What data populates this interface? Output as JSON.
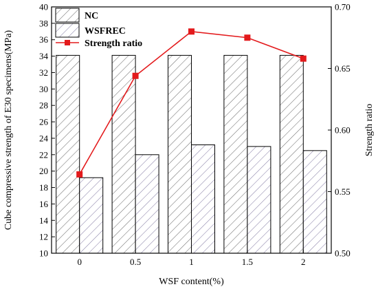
{
  "chart_data": {
    "type": "bar",
    "categories": [
      "0",
      "0.5",
      "1",
      "1.5",
      "2"
    ],
    "series": [
      {
        "name": "NC",
        "type": "bar",
        "axis": "left",
        "values": [
          34.1,
          34.1,
          34.1,
          34.1,
          34.1
        ],
        "color": "#ffffff",
        "pattern": "diagonal-hatch"
      },
      {
        "name": "WSFREC",
        "type": "bar",
        "axis": "left",
        "values": [
          19.2,
          22.0,
          23.2,
          23.0,
          22.5
        ],
        "color": "#ffffff",
        "pattern": "diagonal-hatch"
      },
      {
        "name": "Strength ratio",
        "type": "line",
        "axis": "right",
        "marker": "square",
        "values": [
          0.564,
          0.644,
          0.68,
          0.675,
          0.658
        ],
        "color": "#e31a1c"
      }
    ],
    "xlabel": "WSF content(%)",
    "ylabel": "Cube compressive strength of E30 specimens(MPa)",
    "y2label": "Strength ratio",
    "ylim": [
      10,
      40
    ],
    "yticks": [
      "10",
      "12",
      "14",
      "16",
      "18",
      "20",
      "22",
      "24",
      "26",
      "28",
      "30",
      "32",
      "34",
      "36",
      "38",
      "40"
    ],
    "y2lim": [
      0.5,
      0.7
    ],
    "y2ticks": [
      "0.50",
      "0.55",
      "0.60",
      "0.65",
      "0.70"
    ],
    "grid": false,
    "legend_position": "top-left"
  }
}
